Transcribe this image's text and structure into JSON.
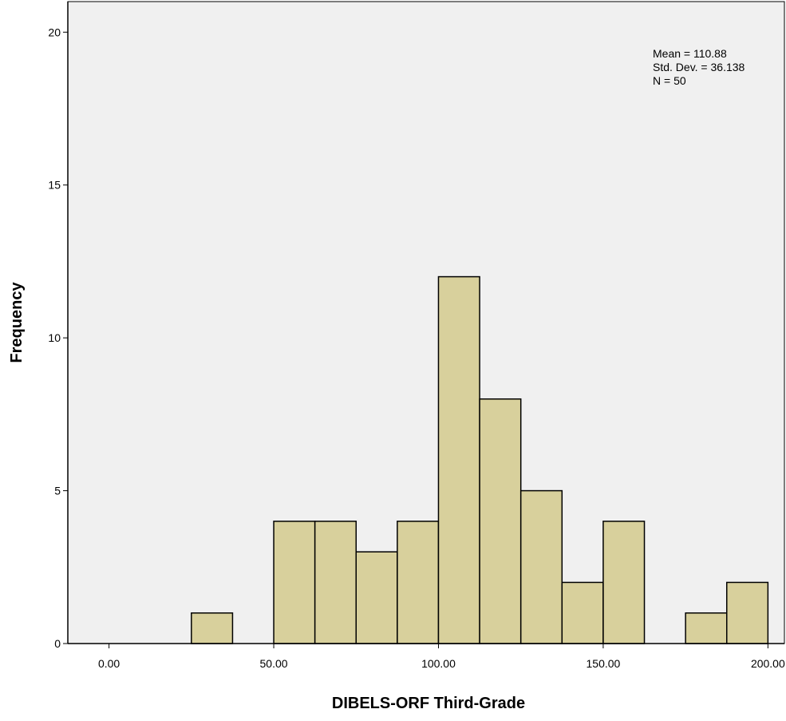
{
  "chart_data": {
    "type": "bar",
    "subtype": "histogram",
    "xlabel": "DIBELS-ORF Third-Grade",
    "ylabel": "Frequency",
    "xlim": [
      -12.5,
      205
    ],
    "ylim": [
      0,
      21
    ],
    "xticks": [
      0,
      50,
      100,
      150,
      200
    ],
    "xtick_labels": [
      "0.00",
      "50.00",
      "100.00",
      "150.00",
      "200.00"
    ],
    "yticks": [
      0,
      5,
      10,
      15,
      20
    ],
    "ytick_labels": [
      "0",
      "5",
      "10",
      "15",
      "20"
    ],
    "bin_width": 12.5,
    "bins": [
      {
        "start": 25,
        "end": 37.5,
        "count": 1
      },
      {
        "start": 50,
        "end": 62.5,
        "count": 4
      },
      {
        "start": 62.5,
        "end": 75,
        "count": 4
      },
      {
        "start": 75,
        "end": 87.5,
        "count": 3
      },
      {
        "start": 87.5,
        "end": 100,
        "count": 4
      },
      {
        "start": 100,
        "end": 112.5,
        "count": 12
      },
      {
        "start": 112.5,
        "end": 125,
        "count": 8
      },
      {
        "start": 125,
        "end": 137.5,
        "count": 5
      },
      {
        "start": 137.5,
        "end": 150,
        "count": 2
      },
      {
        "start": 150,
        "end": 162.5,
        "count": 4
      },
      {
        "start": 175,
        "end": 187.5,
        "count": 1
      },
      {
        "start": 187.5,
        "end": 200,
        "count": 2
      }
    ],
    "stats": {
      "mean": "Mean = 110.88",
      "std_dev": "Std. Dev. = 36.138",
      "n": "N = 50"
    },
    "grid": false,
    "legend": "none",
    "colors": {
      "bar_fill": "#d8d09c",
      "bar_stroke": "#000000",
      "plot_background": "#f0f0f0",
      "page_background": "#ffffff"
    }
  }
}
